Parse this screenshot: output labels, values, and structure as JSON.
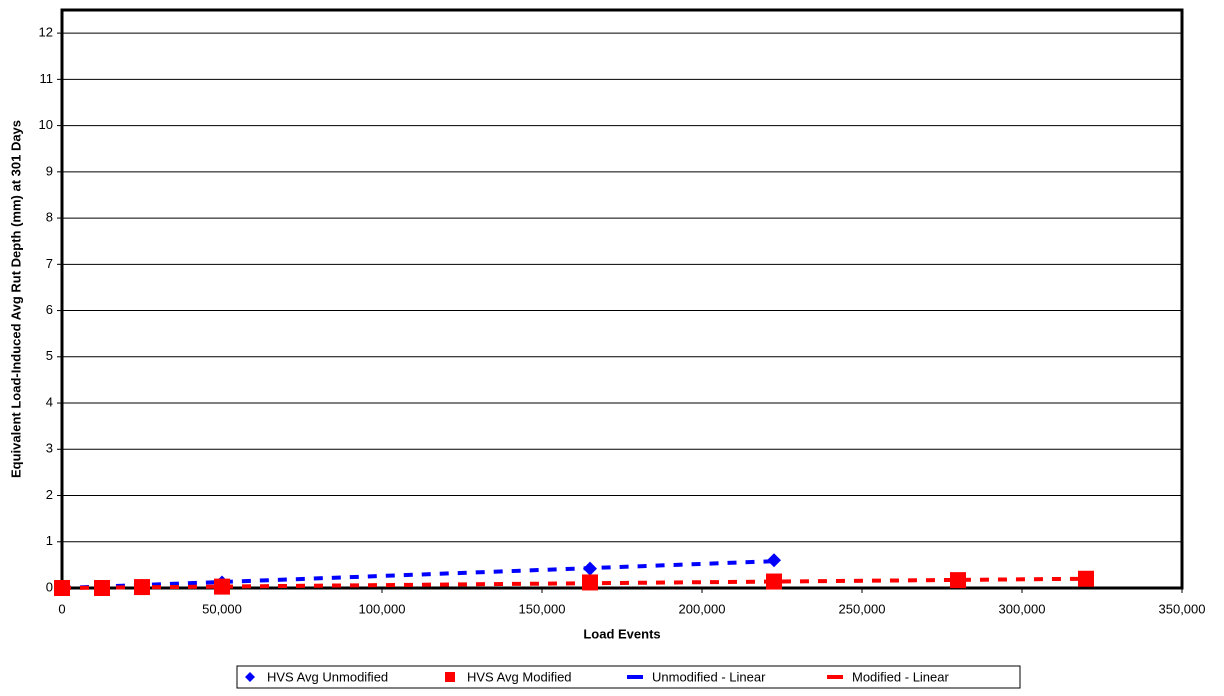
{
  "chart_data": {
    "type": "scatter",
    "x_label": "Load Events",
    "y_label": "Equivalent Load-Induced Avg Rut Depth (mm) at 301 Days",
    "xlim": [
      0,
      350000
    ],
    "ylim": [
      0,
      12.5
    ],
    "xticks": [
      0,
      {
        "value": 50000,
        "label": "50,000"
      },
      {
        "value": 100000,
        "label": "100,000"
      },
      {
        "value": 150000,
        "label": "150,000"
      },
      {
        "value": 200000,
        "label": "200,000"
      },
      {
        "value": 250000,
        "label": "250,000"
      },
      {
        "value": 300000,
        "label": "300,000"
      },
      {
        "value": 350000,
        "label": "350,000"
      }
    ],
    "yticks": [
      0,
      1,
      2,
      3,
      4,
      5,
      6,
      7,
      8,
      9,
      10,
      11,
      12
    ],
    "grid": true,
    "series": [
      {
        "name": "HVS Avg Unmodified",
        "color": "#0000ff",
        "marker": "diamond",
        "x": [
          0,
          12500,
          25000,
          50000,
          165000,
          222500
        ],
        "values": [
          0,
          0.02,
          0.05,
          0.12,
          0.42,
          0.6
        ]
      },
      {
        "name": "HVS Avg Modified",
        "color": "#ff0000",
        "marker": "square",
        "x": [
          0,
          12500,
          25000,
          50000,
          165000,
          222500,
          280000,
          320000
        ],
        "values": [
          0,
          0,
          0.02,
          0.03,
          0.12,
          0.14,
          0.17,
          0.2
        ]
      },
      {
        "name": "Unmodified - Linear",
        "color": "#0000ff",
        "marker": "dash",
        "x": [
          0,
          222500
        ],
        "values": [
          0,
          0.58
        ]
      },
      {
        "name": "Modified - Linear",
        "color": "#ff0000",
        "marker": "dash",
        "x": [
          0,
          320000
        ],
        "values": [
          0,
          0.2
        ]
      }
    ]
  }
}
